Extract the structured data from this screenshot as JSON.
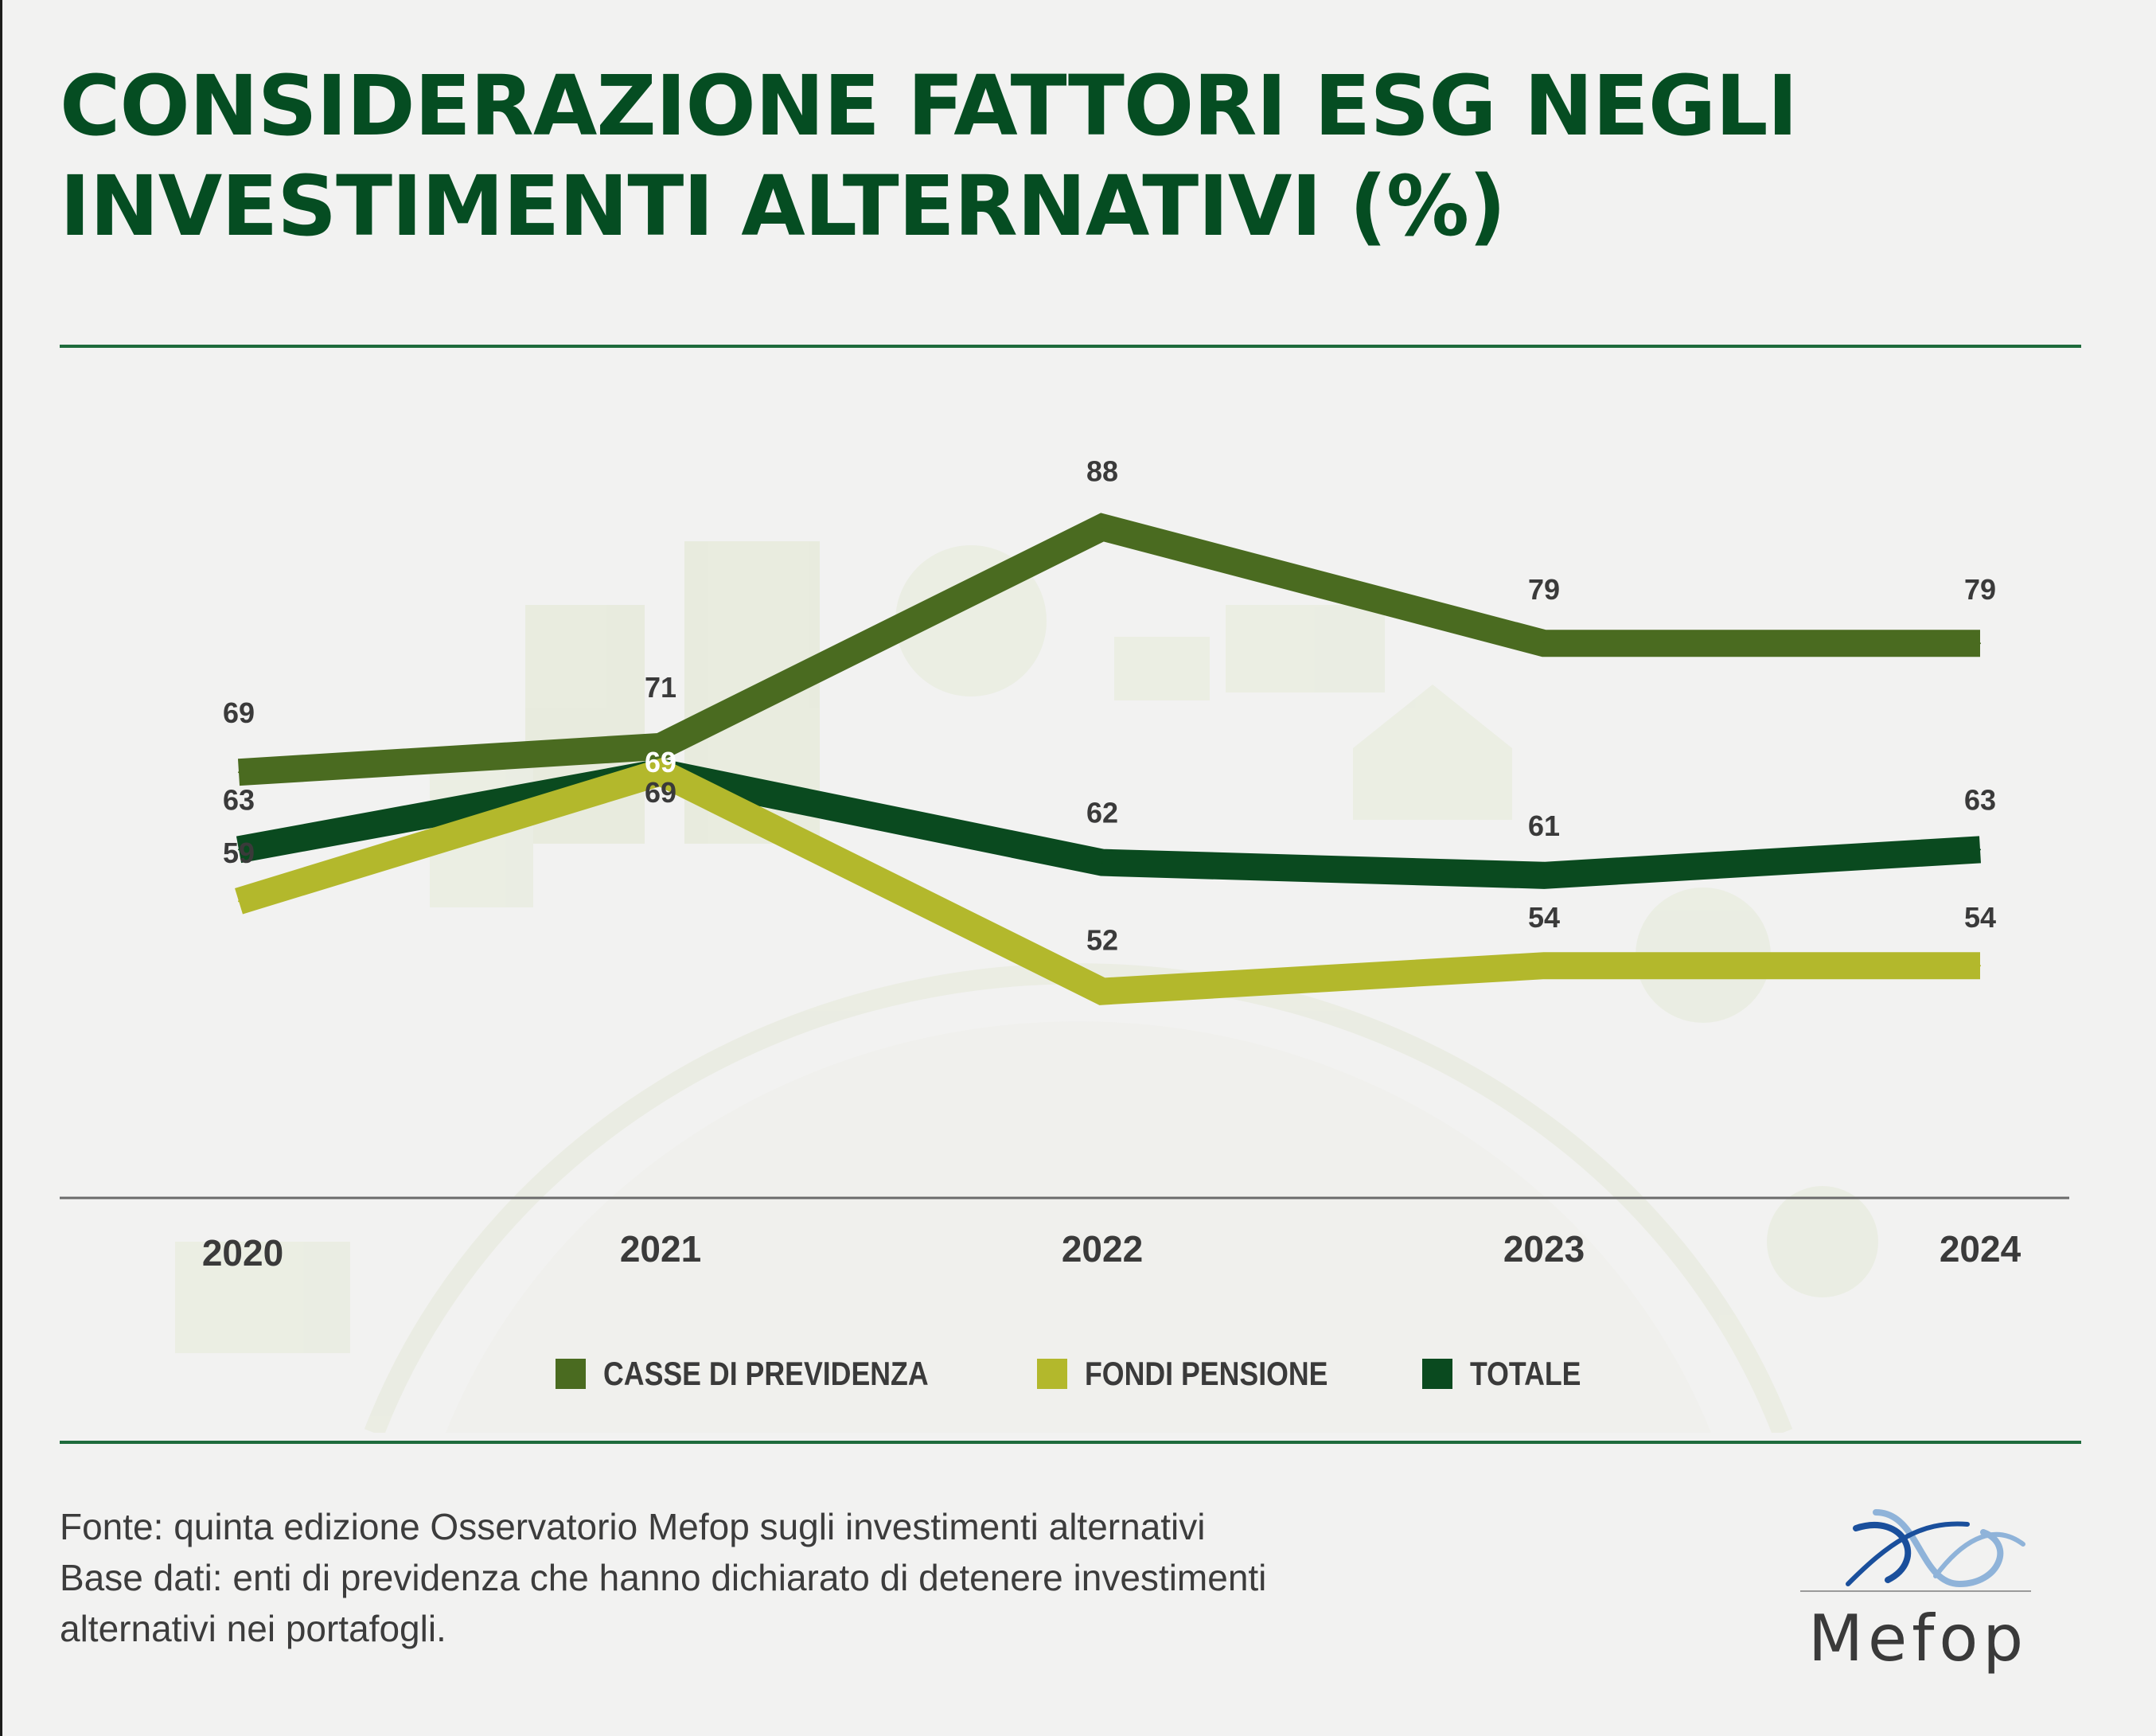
{
  "title_lines": [
    "CONSIDERAZIONE FATTORI ESG NEGLI",
    "INVESTIMENTI ALTERNATIVI (%)"
  ],
  "chart_data": {
    "type": "line",
    "categories": [
      "2020",
      "2021",
      "2022",
      "2023",
      "2024"
    ],
    "series": [
      {
        "name": "CASSE DI PREVIDENZA",
        "color": "#4a6b20",
        "values": [
          69,
          71,
          88,
          79,
          79
        ]
      },
      {
        "name": "FONDI PENSIONE",
        "color": "#b3b82c",
        "values": [
          59,
          69,
          52,
          54,
          54
        ]
      },
      {
        "name": "TOTALE",
        "color": "#0a4a1f",
        "values": [
          63,
          69,
          62,
          61,
          63
        ]
      }
    ],
    "xlabel": "",
    "ylabel": "",
    "ylim": [
      40,
      90
    ],
    "grid": false,
    "legend": "bottom-center"
  },
  "footer": {
    "line1": "Fonte: quinta edizione Osservatorio Mefop sugli investimenti alternativi",
    "line2": "Base dati: enti di previdenza che hanno dichiarato di detenere investimenti",
    "line3": "alternativi nei portafogli."
  },
  "logo": {
    "text": "Mefop",
    "colors": [
      "#1a4f9c",
      "#8fb3d9"
    ]
  }
}
